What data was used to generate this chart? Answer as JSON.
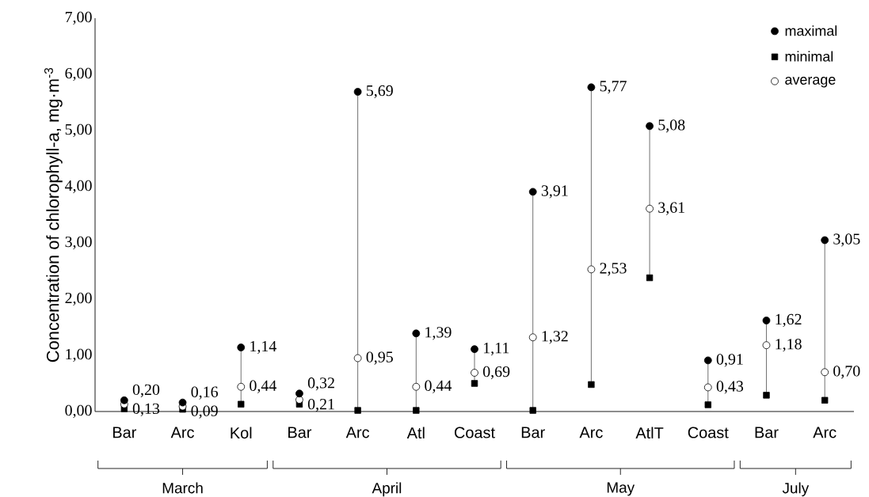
{
  "chart_data": {
    "type": "scatter",
    "ylabel": "Concentration of chlorophyll-a, mg·m$^{-3}$",
    "categories": [
      "Bar",
      "Arc",
      "Kol",
      "Bar",
      "Arc",
      "Atl",
      "Coast",
      "Bar",
      "Arc",
      "AtlT",
      "Coast",
      "Bar",
      "Arc"
    ],
    "series": [
      {
        "name": "maximal",
        "color": "#000000",
        "marker": "circle",
        "values": [
          0.2,
          0.16,
          1.14,
          0.32,
          5.69,
          1.39,
          1.11,
          3.91,
          5.77,
          5.08,
          0.91,
          1.62,
          3.05
        ],
        "value_labels": [
          "0,20",
          "0,16",
          "1,14",
          "0,32",
          "5,69",
          "1,39",
          "1,11",
          "3,91",
          "5,77",
          "5,08",
          "0,91",
          "1,62",
          "3,05"
        ]
      },
      {
        "name": "minimal",
        "color": "#000000",
        "marker": "square",
        "values": [
          0.05,
          0.04,
          0.13,
          0.13,
          0.02,
          0.02,
          0.5,
          0.02,
          0.48,
          2.38,
          0.12,
          0.29,
          0.2
        ]
      },
      {
        "name": "average",
        "color": "#ffffff",
        "marker": "circle",
        "values": [
          0.13,
          0.09,
          0.44,
          0.21,
          0.95,
          0.44,
          0.69,
          1.32,
          2.53,
          3.61,
          0.43,
          1.18,
          0.7
        ],
        "value_labels": [
          "0,13",
          "0,09",
          "0,44",
          "0,21",
          "0,95",
          "0,44",
          "0,69",
          "1,32",
          "2,53",
          "3,61",
          "0,43",
          "1,18",
          "0,70"
        ]
      }
    ],
    "ylim": [
      0,
      7
    ],
    "yticks": [
      {
        "value": 0,
        "label": "0,00"
      },
      {
        "value": 1,
        "label": "1,00"
      },
      {
        "value": 2,
        "label": "2,00"
      },
      {
        "value": 3,
        "label": "3,00"
      },
      {
        "value": 4,
        "label": "4,00"
      },
      {
        "value": 5,
        "label": "5,00"
      },
      {
        "value": 6,
        "label": "6,00"
      },
      {
        "value": 7,
        "label": "7,00"
      }
    ],
    "legend": "top right",
    "annotations": [
      "March",
      "April",
      "May",
      "July"
    ]
  }
}
